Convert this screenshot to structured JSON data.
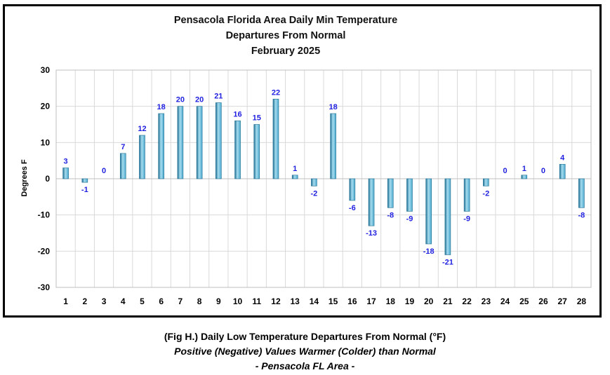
{
  "colors": {
    "bar": "#4aa8cc",
    "bar_light": "#a6dcef",
    "bar_dark": "#1f6f93",
    "label": "#1f1fe0",
    "grid": "#d9d9d9"
  },
  "chart_data": {
    "type": "bar",
    "title": [
      "Pensacola Florida Area Daily Min Temperature",
      "Departures From Normal",
      "February 2025"
    ],
    "ylabel": "Degrees F",
    "xlabel": "",
    "ylim": [
      -30,
      30
    ],
    "yticks": [
      -30,
      -20,
      -10,
      0,
      10,
      20,
      30
    ],
    "grid": true,
    "categories": [
      "1",
      "2",
      "3",
      "4",
      "5",
      "6",
      "7",
      "8",
      "9",
      "10",
      "11",
      "12",
      "13",
      "14",
      "15",
      "16",
      "17",
      "18",
      "19",
      "20",
      "21",
      "22",
      "23",
      "24",
      "25",
      "26",
      "27",
      "28"
    ],
    "values": [
      3,
      -1,
      0,
      7,
      12,
      18,
      20,
      20,
      21,
      16,
      15,
      22,
      1,
      -2,
      18,
      -6,
      -13,
      -8,
      -9,
      -18,
      -21,
      -9,
      -2,
      0,
      1,
      0,
      4,
      -8
    ]
  },
  "caption": {
    "line1": "(Fig H.) Daily Low Temperature Departures From Normal (°F)",
    "line2": "Positive (Negative) Values Warmer (Colder) than Normal",
    "line3": "- Pensacola FL Area -"
  }
}
